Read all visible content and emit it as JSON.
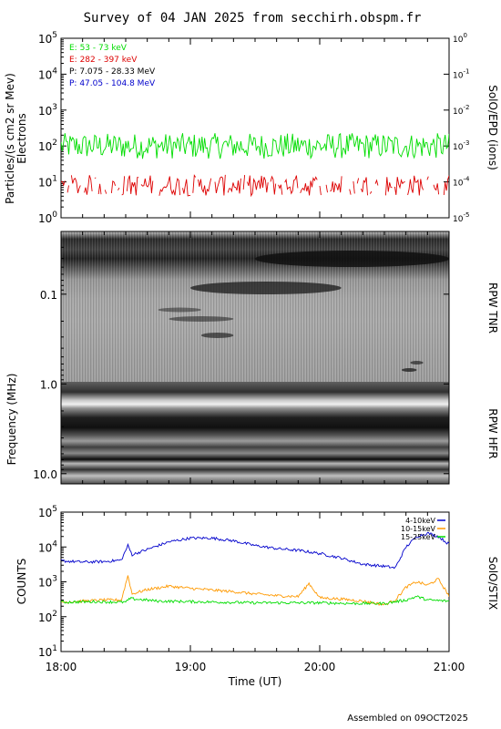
{
  "title": "Survey of 04 JAN 2025 from secchirh.obspm.fr",
  "footer": "Assembled on 09OCT2025",
  "colors": {
    "green": "#00dd00",
    "red": "#dd0000",
    "black": "#000000",
    "blue": "#0000cc",
    "orange": "#ff9900"
  },
  "chart_data": [
    {
      "type": "line",
      "panel": "SolO/EPD",
      "ylabel": "Particles/(s cm2 sr Mev)",
      "ylabel2": "Electrons",
      "right_label": "SolO/EPD (ions)",
      "yscale": "log",
      "ylim": [
        1,
        100000
      ],
      "yticks": [
        "10^0",
        "10^1",
        "10^2",
        "10^3",
        "10^4",
        "10^5"
      ],
      "y2lim": [
        1e-05,
        1
      ],
      "y2ticks": [
        "10^-5",
        "10^-4",
        "10^-3",
        "10^-2",
        "10^-1",
        "10^0"
      ],
      "xlim": [
        "18:00",
        "21:00"
      ],
      "legend": [
        {
          "text": "E: 53 - 73 keV",
          "color": "#00dd00"
        },
        {
          "text": "E: 282 - 397 keV",
          "color": "#dd0000"
        },
        {
          "text": "P: 7.075 - 28.33 MeV",
          "color": "#000000"
        },
        {
          "text": "P: 47.05 - 104.8 MeV",
          "color": "#0000cc"
        }
      ],
      "series": [
        {
          "name": "E: 53 - 73 keV",
          "color": "#00dd00",
          "typical": 100,
          "min": 40,
          "max": 250
        },
        {
          "name": "E: 282 - 397 keV",
          "color": "#dd0000",
          "typical": 8,
          "min": 4,
          "max": 18,
          "gaps": true
        }
      ]
    },
    {
      "type": "heatmap",
      "panel": "RPW",
      "ylabel": "Frequency (MHz)",
      "yscale": "log",
      "ylim": [
        0.02,
        13
      ],
      "yticks": [
        "0.1",
        "1.0",
        "10.0"
      ],
      "xlim": [
        "18:00",
        "21:00"
      ],
      "right_labels": [
        "RPW TNR",
        "RPW HFR"
      ],
      "tnr_hfr_boundary_mhz": 0.9
    },
    {
      "type": "line",
      "panel": "SolO/STIX",
      "ylabel": "COUNTS",
      "right_label": "SolO/STIX",
      "yscale": "log",
      "ylim": [
        10,
        100000
      ],
      "yticks": [
        "10^1",
        "10^2",
        "10^3",
        "10^4",
        "10^5"
      ],
      "xlabel": "Time (UT)",
      "xticks": [
        "18:00",
        "19:00",
        "20:00",
        "21:00"
      ],
      "xlim": [
        "18:00",
        "21:00"
      ],
      "series": [
        {
          "name": "4-10keV",
          "color": "#0000cc",
          "x": [
            "18:00",
            "18:10",
            "18:20",
            "18:28",
            "18:31",
            "18:33",
            "18:40",
            "18:50",
            "19:00",
            "19:10",
            "19:20",
            "19:30",
            "19:40",
            "19:50",
            "20:00",
            "20:10",
            "20:20",
            "20:30",
            "20:35",
            "20:40",
            "20:45",
            "20:50",
            "20:55",
            "21:00"
          ],
          "y": [
            4000,
            3700,
            3800,
            4200,
            11000,
            6000,
            8500,
            14000,
            18000,
            18000,
            15000,
            11000,
            9000,
            8000,
            6500,
            4800,
            3200,
            2800,
            2500,
            10000,
            20000,
            25000,
            20000,
            12000
          ]
        },
        {
          "name": "10-15keV",
          "color": "#ff9900",
          "x": [
            "18:00",
            "18:10",
            "18:20",
            "18:28",
            "18:31",
            "18:33",
            "18:40",
            "18:50",
            "19:00",
            "19:10",
            "19:20",
            "19:30",
            "19:40",
            "19:50",
            "19:55",
            "20:00",
            "20:10",
            "20:20",
            "20:30",
            "20:35",
            "20:40",
            "20:45",
            "20:50",
            "20:55",
            "21:00"
          ],
          "y": [
            260,
            280,
            300,
            300,
            1500,
            450,
            600,
            750,
            650,
            580,
            520,
            450,
            400,
            380,
            900,
            350,
            320,
            280,
            220,
            300,
            700,
            1000,
            800,
            1200,
            400
          ]
        },
        {
          "name": "15-25keV",
          "color": "#00dd00",
          "x": [
            "18:00",
            "18:15",
            "18:30",
            "18:32",
            "18:45",
            "19:00",
            "19:15",
            "19:30",
            "19:45",
            "20:00",
            "20:15",
            "20:30",
            "20:40",
            "20:45",
            "20:50",
            "21:00"
          ],
          "y": [
            260,
            270,
            260,
            330,
            280,
            270,
            260,
            250,
            250,
            250,
            240,
            240,
            300,
            380,
            300,
            280
          ]
        }
      ]
    }
  ]
}
